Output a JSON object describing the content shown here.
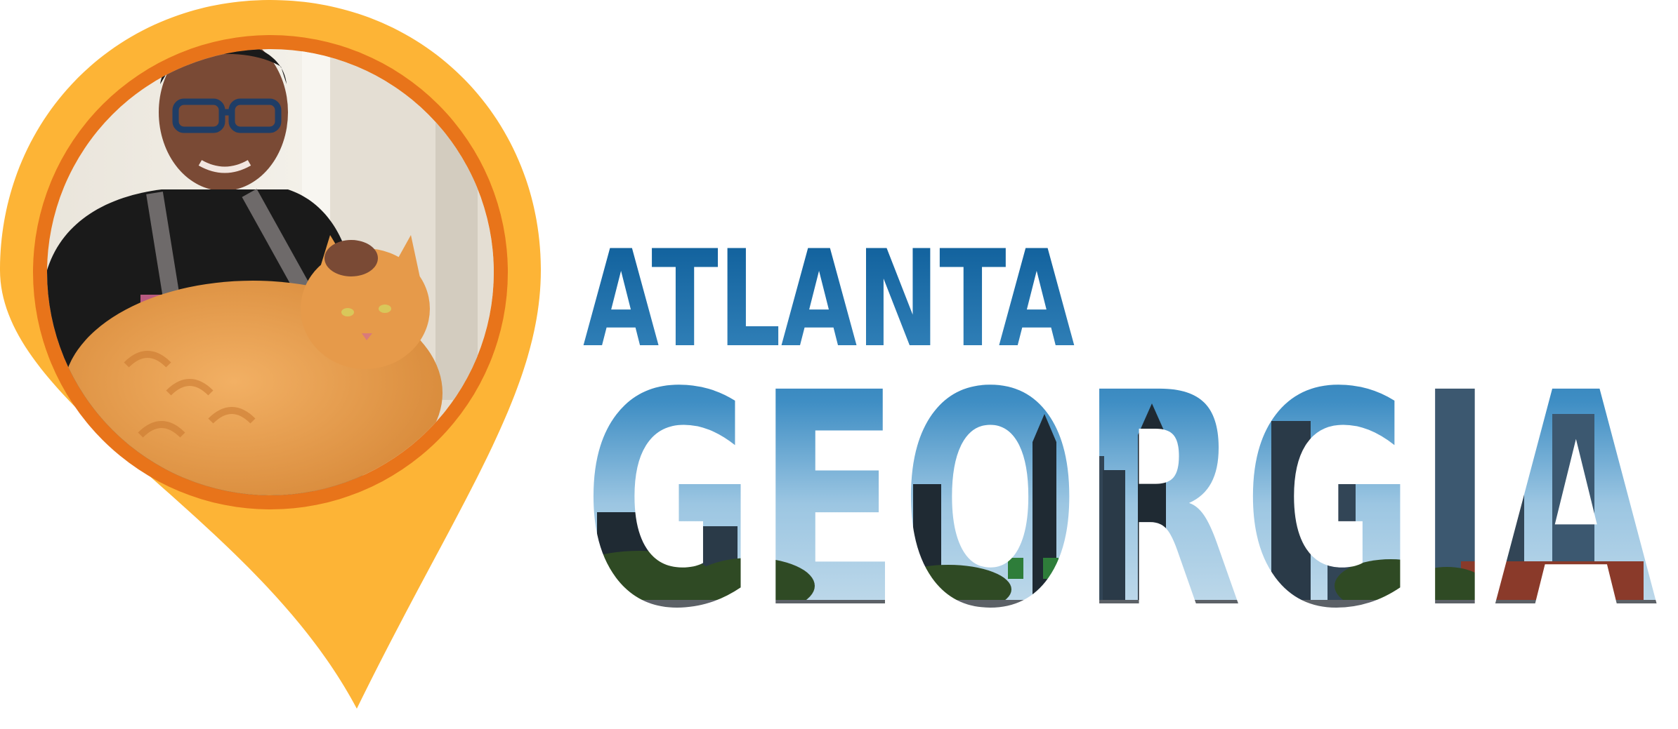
{
  "heading": {
    "line1": "ATLANTA",
    "line2": "GEORGIA"
  },
  "colors": {
    "pin_outer": "#FDB436",
    "pin_ring": "#E8741A",
    "sky_top": "#0E5E9A",
    "sky_mid": "#3F8EC4",
    "sky_light": "#9CC6E2",
    "city_dark": "#1F2A33",
    "city_green": "#2F4A24",
    "shirt": "#1A1A1A",
    "cat_fur": "#E69A4A",
    "skin": "#7A4A35"
  },
  "icons": {
    "pin": "map-pin-icon"
  }
}
